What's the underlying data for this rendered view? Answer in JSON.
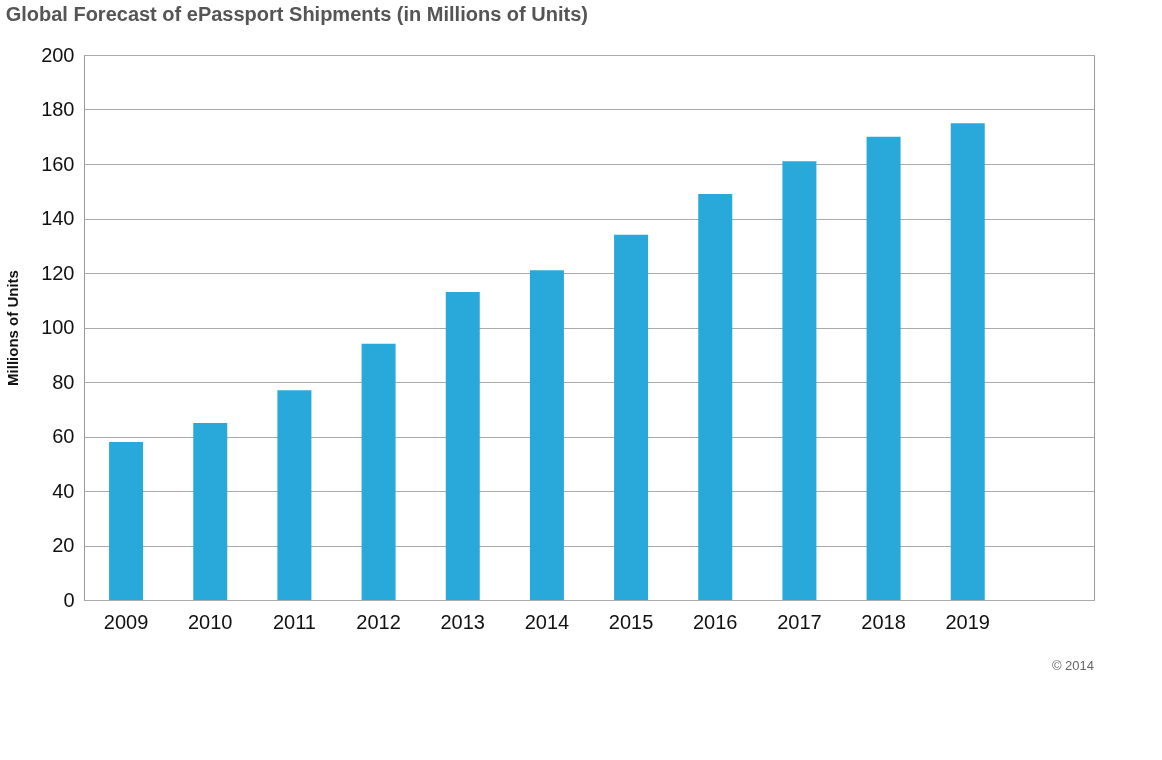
{
  "chart_data": {
    "type": "bar",
    "title": "Global Forecast of ePassport Shipments (in Millions of Units)",
    "ylabel": "Millions of Units",
    "categories": [
      "2009",
      "2010",
      "2011",
      "2012",
      "2013",
      "2014",
      "2015",
      "2016",
      "2017",
      "2018",
      "2019",
      null
    ],
    "values": [
      58,
      65,
      77,
      94,
      113,
      121,
      134,
      149,
      161,
      170,
      175,
      null
    ],
    "color": "#29a8da",
    "ylim": [
      0,
      200
    ],
    "yticks": [
      0,
      20,
      40,
      60,
      80,
      100,
      120,
      140,
      160,
      180,
      200
    ],
    "grid": "y",
    "annotations": [
      "© 2014"
    ]
  }
}
